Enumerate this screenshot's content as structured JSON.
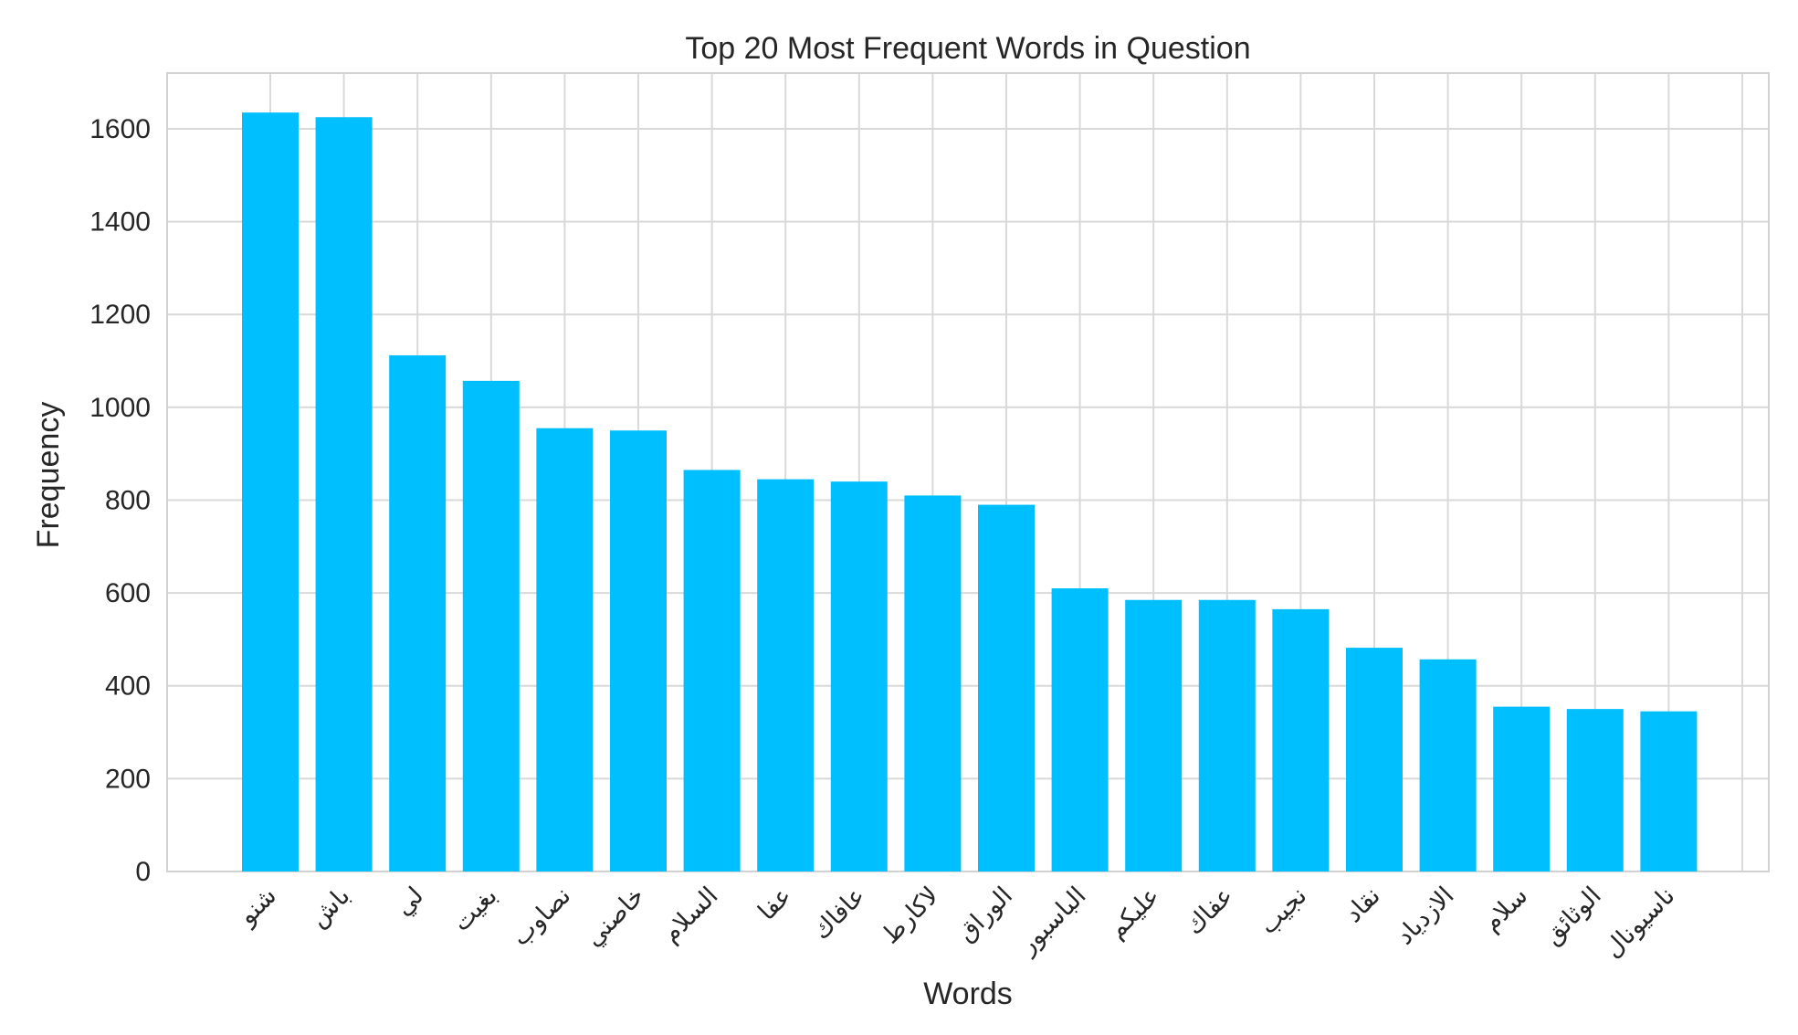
{
  "chart_data": {
    "type": "bar",
    "title": "Top 20 Most Frequent Words in Question",
    "xlabel": "Words",
    "ylabel": "Frequency",
    "categories": [
      "شنو",
      "باش",
      "لي",
      "بغيت",
      "نصاوب",
      "خاصني",
      "السلام",
      "عفا",
      "عافاك",
      "لاكارط",
      "الوراق",
      "الباسبور",
      "عليكم",
      "عفاك",
      "نجيب",
      "نقاد",
      "الازدياد",
      "سلام",
      "الوثائق",
      "ناسيونال"
    ],
    "values": [
      1635,
      1625,
      1112,
      1057,
      955,
      950,
      865,
      845,
      840,
      810,
      790,
      610,
      585,
      585,
      565,
      482,
      457,
      355,
      350,
      345
    ],
    "ylim": [
      0,
      1720
    ],
    "yticks": [
      0,
      200,
      400,
      600,
      800,
      1000,
      1200,
      1400,
      1600
    ],
    "grid": true,
    "bar_color": "#00bfff"
  }
}
